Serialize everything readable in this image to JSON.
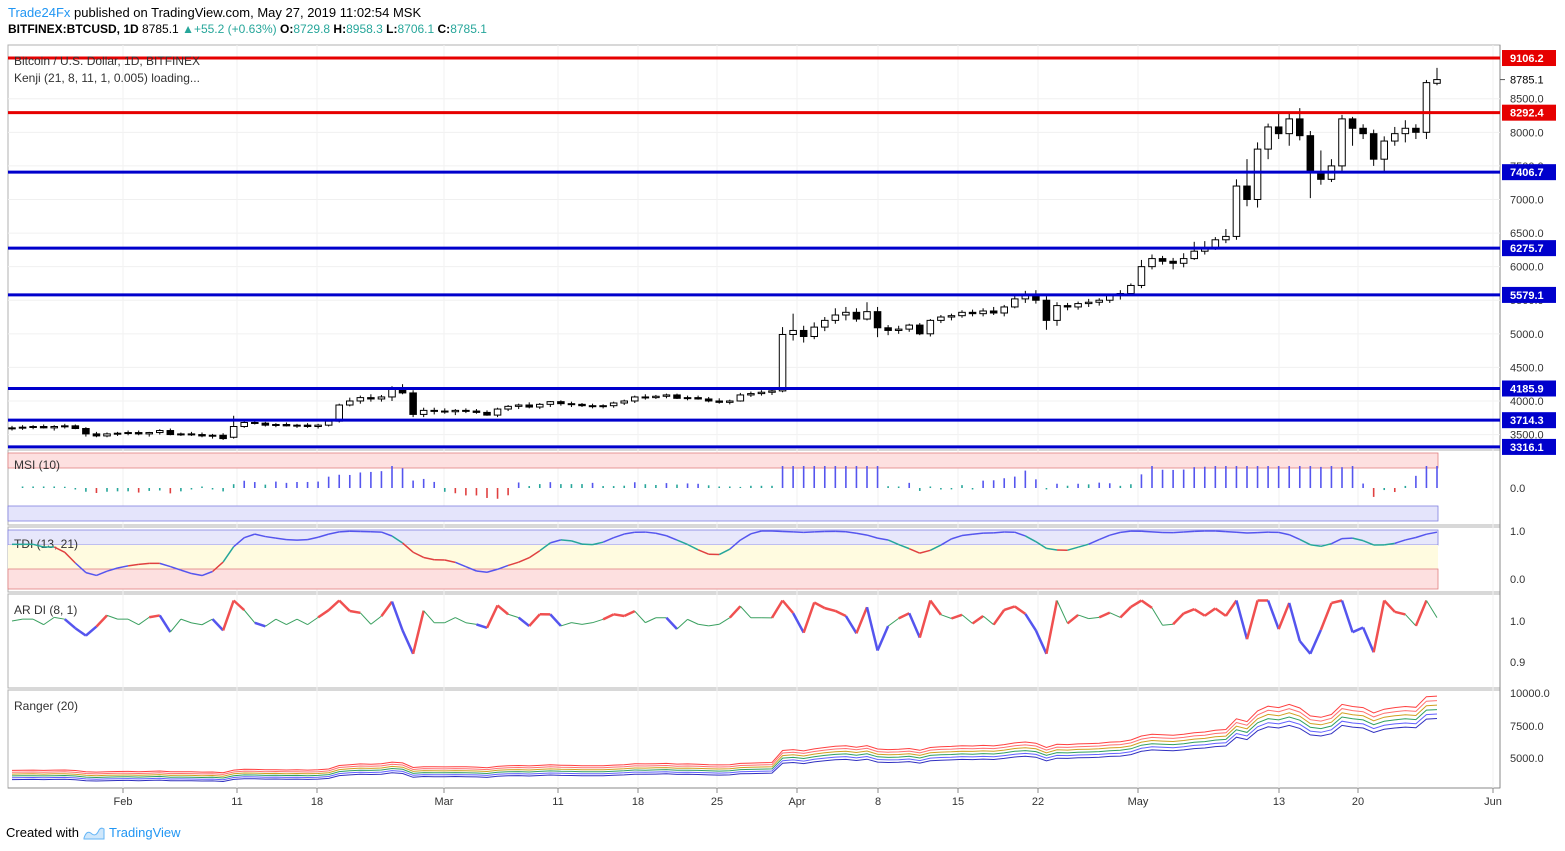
{
  "header": {
    "publisher": "Trade24Fx",
    "published_text": "published on TradingView.com, May 27, 2019 11:02:54 MSK"
  },
  "symbol_bar": {
    "symbol": "BITFINEX:BTCUSD, 1D",
    "last": "8785.1",
    "change": "+55.2 (+0.63%)",
    "o_label": "O:",
    "o": "8729.8",
    "h_label": "H:",
    "h": "8958.3",
    "l_label": "L:",
    "l": "8706.1",
    "c_label": "C:",
    "c": "8785.1",
    "up_color": "#26a69a"
  },
  "footer": {
    "created_with": "Created with",
    "brand": "TradingView"
  },
  "chart_data": [
    {
      "type": "candlestick",
      "title": "Bitcoin / U.S. Dollar, 1D, BITFINEX",
      "subtitle": "Kenji (21, 8, 11, 1, 0.005) loading...",
      "ylim": [
        3300,
        9300
      ],
      "y_ticks": [
        "3500.0",
        "4000.0",
        "4500.0",
        "5000.0",
        "5500.0",
        "6000.0",
        "6500.0",
        "7000.0",
        "7500.0",
        "8000.0",
        "8500.0"
      ],
      "x_ticks": [
        "Feb",
        "11",
        "18",
        "Mar",
        "11",
        "18",
        "25",
        "Apr",
        "8",
        "15",
        "22",
        "May",
        "13",
        "20",
        "Jun"
      ],
      "current_price": "8785.1",
      "horizontal_levels": [
        {
          "value": "9106.2",
          "color": "#e60000"
        },
        {
          "value": "8292.4",
          "color": "#e60000"
        },
        {
          "value": "7406.7",
          "color": "#0000cc"
        },
        {
          "value": "6275.7",
          "color": "#0000cc"
        },
        {
          "value": "5579.1",
          "color": "#0000cc"
        },
        {
          "value": "4185.9",
          "color": "#0000cc"
        },
        {
          "value": "3714.3",
          "color": "#0000cc"
        },
        {
          "value": "3316.1",
          "color": "#0000cc"
        }
      ],
      "ohlc": [
        [
          3590,
          3630,
          3560,
          3600
        ],
        [
          3600,
          3640,
          3570,
          3610
        ],
        [
          3610,
          3640,
          3580,
          3620
        ],
        [
          3620,
          3650,
          3590,
          3600
        ],
        [
          3600,
          3640,
          3560,
          3620
        ],
        [
          3620,
          3660,
          3590,
          3630
        ],
        [
          3630,
          3650,
          3580,
          3590
        ],
        [
          3590,
          3610,
          3470,
          3510
        ],
        [
          3510,
          3540,
          3460,
          3480
        ],
        [
          3480,
          3530,
          3460,
          3510
        ],
        [
          3510,
          3540,
          3480,
          3520
        ],
        [
          3520,
          3560,
          3490,
          3530
        ],
        [
          3530,
          3560,
          3490,
          3510
        ],
        [
          3510,
          3540,
          3470,
          3530
        ],
        [
          3530,
          3580,
          3500,
          3560
        ],
        [
          3560,
          3590,
          3490,
          3500
        ],
        [
          3500,
          3530,
          3480,
          3510
        ],
        [
          3510,
          3540,
          3480,
          3500
        ],
        [
          3500,
          3530,
          3460,
          3480
        ],
        [
          3480,
          3510,
          3440,
          3490
        ],
        [
          3490,
          3520,
          3420,
          3440
        ],
        [
          3460,
          3780,
          3440,
          3620
        ],
        [
          3620,
          3720,
          3600,
          3680
        ],
        [
          3680,
          3700,
          3650,
          3670
        ],
        [
          3670,
          3690,
          3620,
          3640
        ],
        [
          3640,
          3670,
          3610,
          3650
        ],
        [
          3650,
          3680,
          3620,
          3630
        ],
        [
          3630,
          3660,
          3600,
          3640
        ],
        [
          3640,
          3670,
          3600,
          3620
        ],
        [
          3620,
          3660,
          3590,
          3640
        ],
        [
          3640,
          3720,
          3620,
          3700
        ],
        [
          3700,
          3960,
          3680,
          3940
        ],
        [
          3940,
          4050,
          3920,
          4000
        ],
        [
          4000,
          4080,
          3960,
          4050
        ],
        [
          4050,
          4100,
          3990,
          4030
        ],
        [
          4030,
          4090,
          3990,
          4060
        ],
        [
          4060,
          4220,
          4000,
          4180
        ],
        [
          4180,
          4250,
          4100,
          4120
        ],
        [
          4120,
          4160,
          3760,
          3800
        ],
        [
          3800,
          3900,
          3760,
          3860
        ],
        [
          3860,
          3900,
          3800,
          3850
        ],
        [
          3850,
          3890,
          3810,
          3840
        ],
        [
          3840,
          3880,
          3790,
          3860
        ],
        [
          3860,
          3890,
          3820,
          3850
        ],
        [
          3850,
          3880,
          3810,
          3830
        ],
        [
          3830,
          3860,
          3780,
          3790
        ],
        [
          3790,
          3900,
          3760,
          3880
        ],
        [
          3880,
          3940,
          3850,
          3920
        ],
        [
          3920,
          3960,
          3880,
          3940
        ],
        [
          3940,
          3980,
          3890,
          3910
        ],
        [
          3910,
          3970,
          3880,
          3950
        ],
        [
          3950,
          4000,
          3910,
          3990
        ],
        [
          3990,
          4010,
          3930,
          3960
        ],
        [
          3960,
          3990,
          3910,
          3950
        ],
        [
          3950,
          3970,
          3910,
          3930
        ],
        [
          3930,
          3960,
          3890,
          3920
        ],
        [
          3920,
          3950,
          3890,
          3930
        ],
        [
          3930,
          3990,
          3900,
          3970
        ],
        [
          3970,
          4020,
          3940,
          4000
        ],
        [
          4000,
          4080,
          3970,
          4060
        ],
        [
          4060,
          4100,
          4020,
          4050
        ],
        [
          4050,
          4090,
          4030,
          4070
        ],
        [
          4070,
          4110,
          4040,
          4090
        ],
        [
          4090,
          4110,
          4030,
          4040
        ],
        [
          4040,
          4080,
          4010,
          4050
        ],
        [
          4050,
          4080,
          4020,
          4030
        ],
        [
          4030,
          4060,
          3980,
          4000
        ],
        [
          4000,
          4040,
          3960,
          3980
        ],
        [
          3980,
          4020,
          3950,
          4000
        ],
        [
          4000,
          4120,
          3990,
          4090
        ],
        [
          4090,
          4140,
          4060,
          4110
        ],
        [
          4110,
          4160,
          4080,
          4130
        ],
        [
          4130,
          4170,
          4090,
          4150
        ],
        [
          4150,
          5100,
          4130,
          4990
        ],
        [
          4990,
          5300,
          4900,
          5050
        ],
        [
          5050,
          5120,
          4870,
          4960
        ],
        [
          4960,
          5170,
          4920,
          5100
        ],
        [
          5100,
          5250,
          5040,
          5200
        ],
        [
          5200,
          5380,
          5150,
          5280
        ],
        [
          5280,
          5400,
          5200,
          5320
        ],
        [
          5320,
          5380,
          5180,
          5220
        ],
        [
          5220,
          5470,
          5200,
          5330
        ],
        [
          5330,
          5400,
          4950,
          5090
        ],
        [
          5090,
          5130,
          4980,
          5050
        ],
        [
          5050,
          5120,
          5000,
          5070
        ],
        [
          5070,
          5150,
          5030,
          5130
        ],
        [
          5130,
          5160,
          4980,
          5000
        ],
        [
          5000,
          5220,
          4960,
          5200
        ],
        [
          5200,
          5280,
          5160,
          5250
        ],
        [
          5250,
          5300,
          5200,
          5270
        ],
        [
          5270,
          5350,
          5240,
          5320
        ],
        [
          5320,
          5360,
          5260,
          5300
        ],
        [
          5300,
          5380,
          5260,
          5340
        ],
        [
          5340,
          5400,
          5280,
          5310
        ],
        [
          5310,
          5430,
          5260,
          5400
        ],
        [
          5400,
          5580,
          5380,
          5520
        ],
        [
          5520,
          5640,
          5460,
          5580
        ],
        [
          5580,
          5650,
          5450,
          5500
        ],
        [
          5500,
          5560,
          5060,
          5200
        ],
        [
          5200,
          5470,
          5120,
          5420
        ],
        [
          5420,
          5460,
          5350,
          5400
        ],
        [
          5400,
          5480,
          5360,
          5450
        ],
        [
          5450,
          5520,
          5400,
          5470
        ],
        [
          5470,
          5530,
          5420,
          5500
        ],
        [
          5500,
          5600,
          5460,
          5570
        ],
        [
          5570,
          5650,
          5510,
          5600
        ],
        [
          5600,
          5750,
          5580,
          5720
        ],
        [
          5720,
          6100,
          5680,
          6000
        ],
        [
          6000,
          6180,
          5960,
          6120
        ],
        [
          6120,
          6160,
          6030,
          6080
        ],
        [
          6080,
          6130,
          5960,
          6050
        ],
        [
          6050,
          6200,
          5990,
          6120
        ],
        [
          6120,
          6370,
          6100,
          6230
        ],
        [
          6230,
          6380,
          6180,
          6280
        ],
        [
          6280,
          6440,
          6250,
          6400
        ],
        [
          6400,
          6560,
          6350,
          6450
        ],
        [
          6450,
          7300,
          6400,
          7200
        ],
        [
          7200,
          7600,
          6900,
          7000
        ],
        [
          7000,
          7850,
          6880,
          7750
        ],
        [
          7750,
          8130,
          7600,
          8080
        ],
        [
          8080,
          8280,
          7900,
          7980
        ],
        [
          7980,
          8290,
          7800,
          8200
        ],
        [
          8200,
          8360,
          7880,
          7950
        ],
        [
          7950,
          8020,
          7020,
          7400
        ],
        [
          7400,
          7730,
          7220,
          7300
        ],
        [
          7300,
          7600,
          7260,
          7500
        ],
        [
          7500,
          8260,
          7400,
          8200
        ],
        [
          8200,
          8230,
          7800,
          8060
        ],
        [
          8060,
          8120,
          7900,
          7980
        ],
        [
          7980,
          8040,
          7500,
          7600
        ],
        [
          7600,
          7940,
          7400,
          7870
        ],
        [
          7870,
          8080,
          7800,
          7980
        ],
        [
          7980,
          8180,
          7850,
          8060
        ],
        [
          8060,
          8120,
          7900,
          8000
        ],
        [
          8000,
          8780,
          7900,
          8740
        ],
        [
          8730,
          8960,
          8700,
          8785
        ]
      ]
    },
    {
      "type": "bar",
      "title": "MSI (10)",
      "y_ticks": [
        "0.0"
      ]
    },
    {
      "type": "line",
      "title": "TDI (13, 21)",
      "y_ticks": [
        "1.0",
        "0.0"
      ]
    },
    {
      "type": "line",
      "title": "AR DI (8, 1)",
      "y_ticks": [
        "1.0",
        "0.9"
      ]
    },
    {
      "type": "line",
      "title": "Ranger (20)",
      "y_ticks": [
        "10000.0",
        "7500.0",
        "5000.0"
      ]
    }
  ]
}
